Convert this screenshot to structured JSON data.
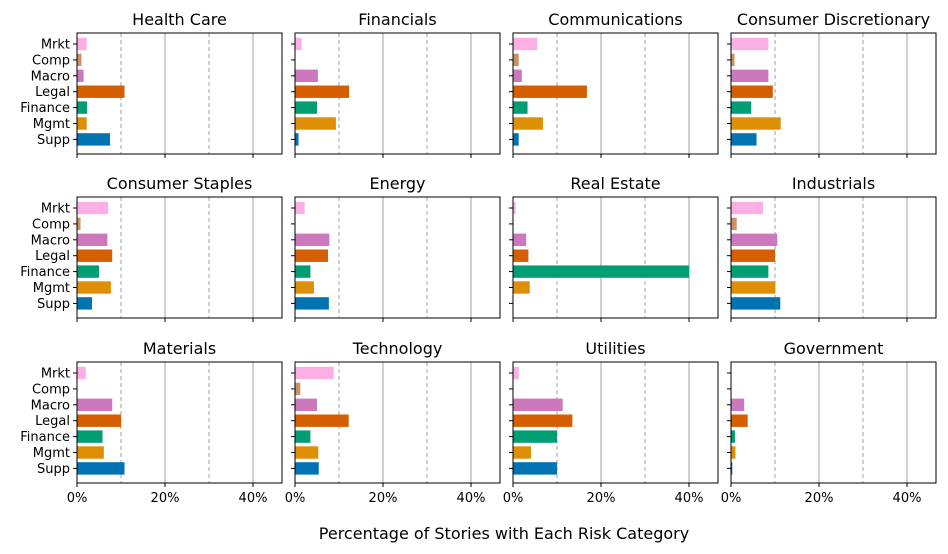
{
  "chart_data": {
    "type": "bar",
    "orientation": "horizontal",
    "xlabel": "Percentage of Stories with Each Risk Category",
    "xlim": [
      0,
      45
    ],
    "xticks": [
      0,
      20,
      40
    ],
    "xtick_labels": [
      "0%",
      "20%",
      "40%"
    ],
    "minor_gridlines": [
      10,
      30
    ],
    "major_gridlines": [
      20,
      40
    ],
    "categories": [
      "Mrkt",
      "Comp",
      "Macro",
      "Legal",
      "Finance",
      "Mgmt",
      "Supp"
    ],
    "colors": {
      "Mrkt": "#fbafe4",
      "Comp": "#ca9161",
      "Macro": "#cc78bc",
      "Legal": "#d55e00",
      "Finance": "#029e73",
      "Mgmt": "#de8f05",
      "Supp": "#0173b2"
    },
    "panels": [
      {
        "title": "Health Care",
        "values": [
          2.2,
          1.0,
          1.5,
          10.8,
          2.3,
          2.2,
          7.5
        ]
      },
      {
        "title": "Financials",
        "values": [
          1.5,
          0,
          5.2,
          12.3,
          5.0,
          9.3,
          0.8
        ]
      },
      {
        "title": "Communications",
        "values": [
          5.5,
          1.3,
          2.0,
          16.8,
          3.3,
          6.8,
          1.3
        ]
      },
      {
        "title": "Consumer Discretionary",
        "values": [
          8.5,
          0.8,
          8.5,
          9.5,
          4.6,
          11.3,
          5.8
        ]
      },
      {
        "title": "Consumer Staples",
        "values": [
          7.1,
          0.8,
          6.9,
          8.0,
          5.0,
          7.7,
          3.4
        ]
      },
      {
        "title": "Energy",
        "values": [
          2.2,
          0,
          7.8,
          7.5,
          3.5,
          4.3,
          7.7
        ]
      },
      {
        "title": "Real Estate",
        "values": [
          0.6,
          0,
          3.0,
          3.5,
          40.0,
          3.8,
          0
        ]
      },
      {
        "title": "Industrials",
        "values": [
          7.3,
          1.3,
          10.5,
          10.0,
          8.5,
          10.1,
          11.2
        ]
      },
      {
        "title": "Materials",
        "values": [
          2.0,
          0,
          8.0,
          10.0,
          5.8,
          6.1,
          10.8
        ]
      },
      {
        "title": "Technology",
        "values": [
          8.8,
          1.2,
          5.0,
          12.2,
          3.5,
          5.3,
          5.4
        ]
      },
      {
        "title": "Utilities",
        "values": [
          1.3,
          0,
          11.3,
          13.5,
          10.0,
          4.1,
          10.0
        ]
      },
      {
        "title": "Government",
        "values": [
          0,
          0,
          3.0,
          3.8,
          0.9,
          1.0,
          0.3
        ]
      }
    ]
  }
}
